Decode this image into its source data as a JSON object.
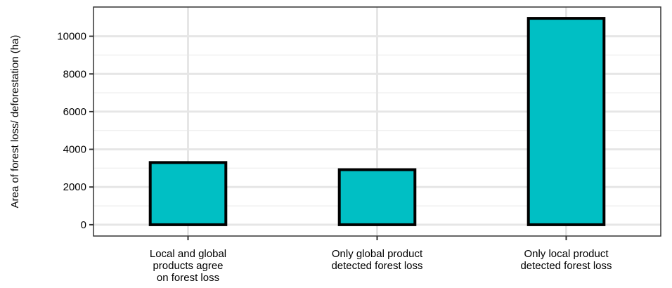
{
  "chart_data": {
    "type": "bar",
    "title": "",
    "xlabel": "",
    "ylabel": "Area of forest loss/ deforestation (ha)",
    "categories": [
      [
        "Local and global",
        "products agree",
        "on forest loss"
      ],
      [
        "Only global product",
        "detected forest loss"
      ],
      [
        "Only local product",
        "detected forest loss"
      ]
    ],
    "values": [
      3300,
      2920,
      10950
    ],
    "ylim": [
      -600,
      11550
    ],
    "yticks": [
      0,
      2000,
      4000,
      6000,
      8000,
      10000
    ],
    "ytick_labels": [
      "0",
      "2000",
      "4000",
      "6000",
      "8000",
      "10000"
    ],
    "grid": true,
    "legend": "none",
    "colors": {
      "bar_fill": "#00BFC4",
      "bar_stroke": "#000000",
      "grid_major": "#e6e6e6",
      "grid_minor": "#f0f0f0",
      "panel_border": "#333333"
    }
  }
}
